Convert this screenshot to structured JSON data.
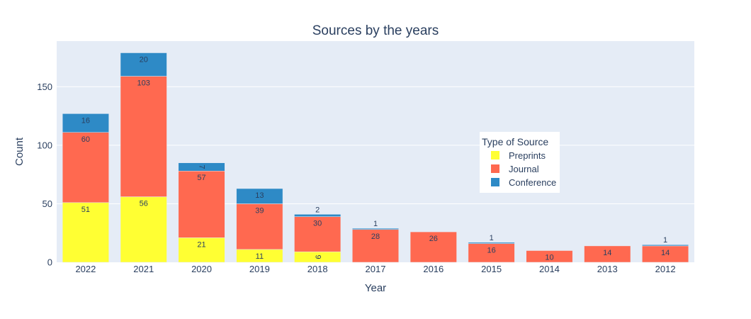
{
  "chart_data": {
    "type": "bar",
    "barmode": "stack",
    "title": "Sources by the years",
    "xlabel": "Year",
    "ylabel": "Count",
    "ylim": [
      0,
      189
    ],
    "yticks": [
      0,
      50,
      100,
      150
    ],
    "grid": true,
    "categories": [
      "2022",
      "2021",
      "2020",
      "2019",
      "2018",
      "2017",
      "2016",
      "2015",
      "2014",
      "2013",
      "2012"
    ],
    "legend": {
      "title": "Type of Source",
      "placement": "right-center"
    },
    "series": [
      {
        "name": "Preprints",
        "color": "#ffff33",
        "values": [
          51,
          56,
          21,
          11,
          9,
          0,
          0,
          0,
          0,
          0,
          0
        ]
      },
      {
        "name": "Journal",
        "color": "#ff6950",
        "values": [
          60,
          103,
          57,
          39,
          30,
          28,
          26,
          16,
          10,
          14,
          14
        ]
      },
      {
        "name": "Conference",
        "color": "#2e8ac6",
        "values": [
          16,
          20,
          7,
          13,
          2,
          1,
          0,
          1,
          0,
          0,
          1
        ]
      }
    ]
  }
}
